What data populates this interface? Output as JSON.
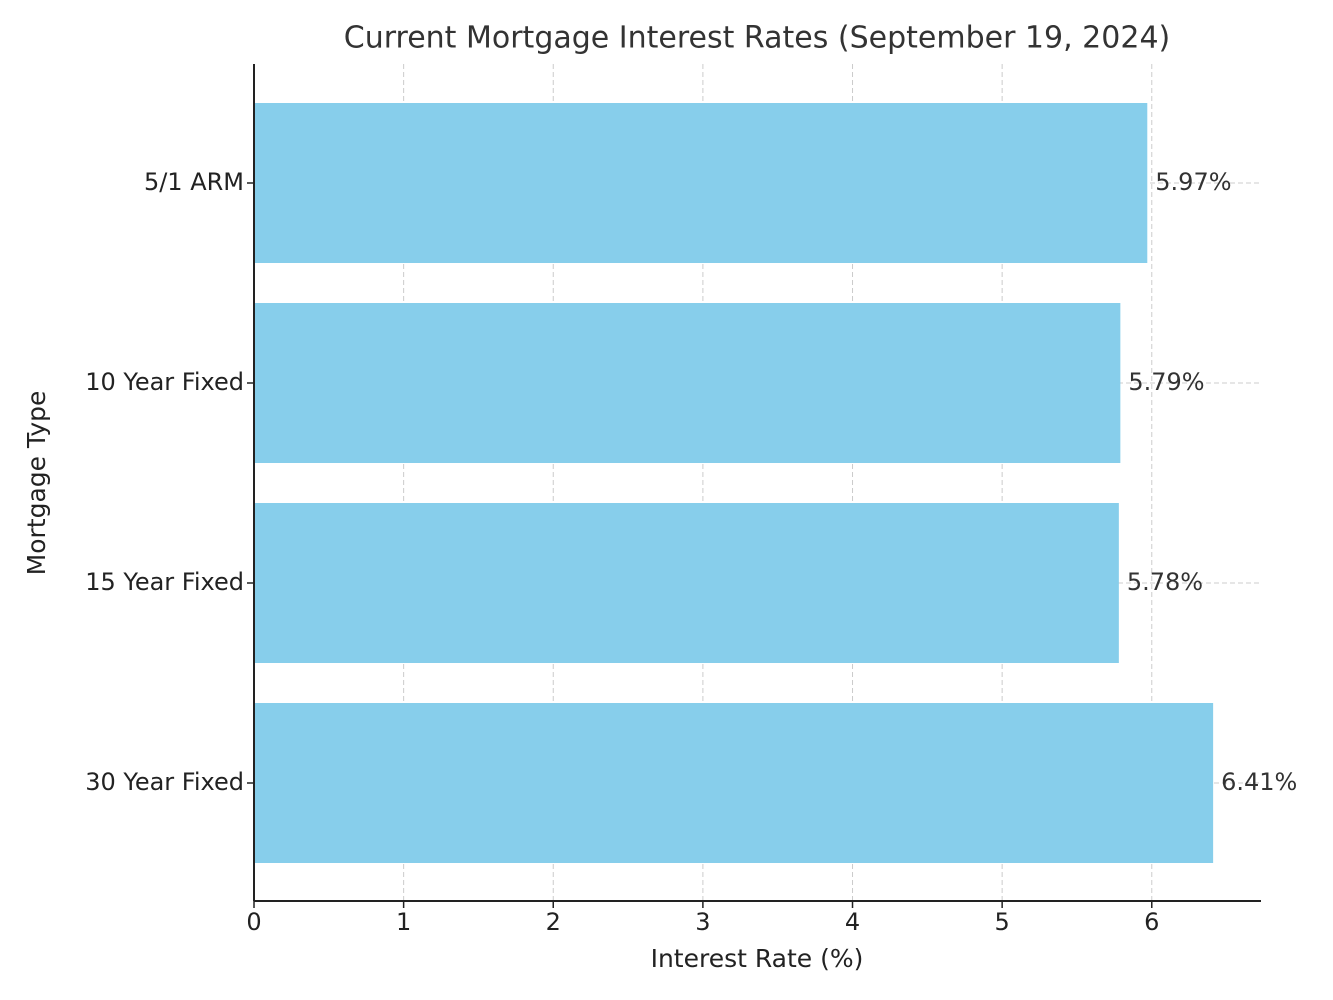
{
  "chart_data": {
    "type": "barh",
    "title": "Current Mortgage Interest Rates (September 19, 2024)",
    "x_label": "Interest Rate (%)",
    "y_label": "Mortgage Type",
    "categories": [
      "30 Year Fixed",
      "15 Year Fixed",
      "10 Year Fixed",
      "5/1 ARM"
    ],
    "values": [
      6.41,
      5.78,
      5.79,
      5.97
    ],
    "value_labels": [
      "6.41%",
      "5.78%",
      "5.79%",
      "5.97%"
    ],
    "color": "#87ceeb",
    "xlim": [
      0,
      6.73
    ],
    "xticks": [
      0,
      1,
      2,
      3,
      4,
      5,
      6
    ],
    "grid": true
  }
}
